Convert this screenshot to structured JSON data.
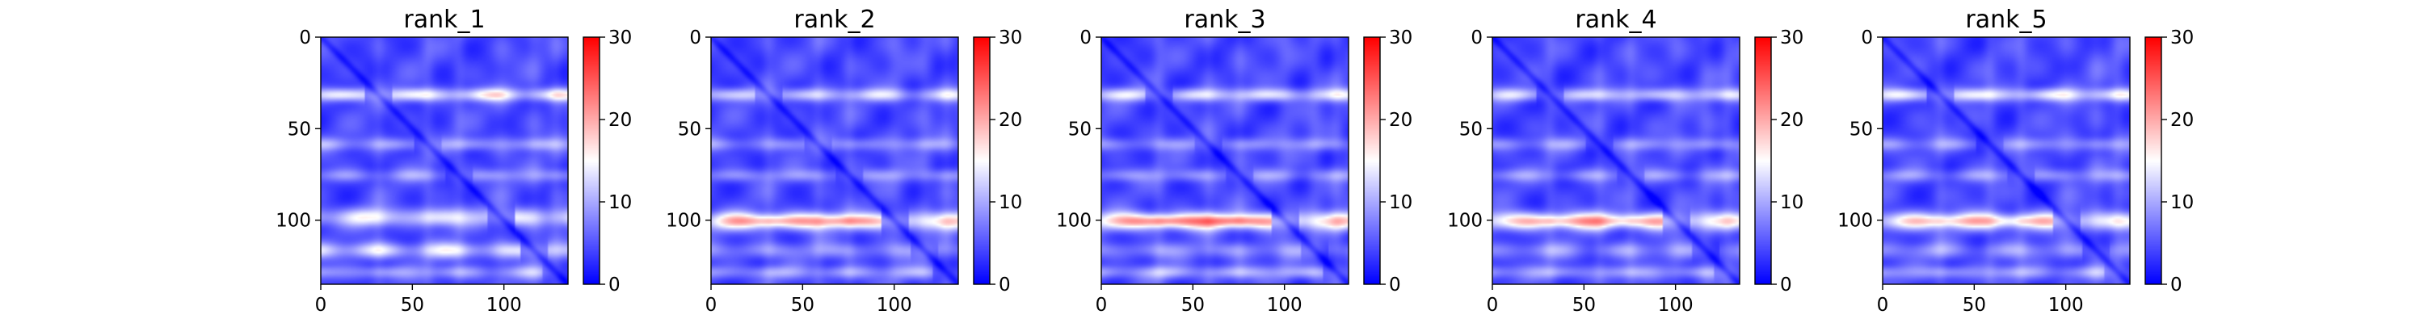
{
  "chart_data": [
    {
      "type": "heatmap",
      "title": "rank_1",
      "xlabel": "",
      "ylabel": "",
      "xlim": [
        0,
        135
      ],
      "ylim": [
        135,
        0
      ],
      "x_ticks": [
        0,
        50,
        100
      ],
      "y_ticks": [
        0,
        50,
        100
      ],
      "colorbar": {
        "min": 0,
        "max": 30,
        "ticks": [
          0,
          10,
          20,
          30
        ],
        "colors": [
          "#0000ff",
          "#ffffff",
          "#ff0000"
        ]
      },
      "row_bands": [
        {
          "center": 31,
          "width": 2.5,
          "value": 16
        },
        {
          "center": 58,
          "width": 2.5,
          "value": 10
        },
        {
          "center": 75,
          "width": 2.5,
          "value": 9
        },
        {
          "center": 98,
          "width": 3.5,
          "value": 15
        },
        {
          "center": 116,
          "width": 3,
          "value": 14
        },
        {
          "center": 128,
          "width": 2.5,
          "value": 10
        }
      ],
      "hot_spots": []
    },
    {
      "type": "heatmap",
      "title": "rank_2",
      "xlabel": "",
      "ylabel": "",
      "xlim": [
        0,
        135
      ],
      "ylim": [
        135,
        0
      ],
      "x_ticks": [
        0,
        50,
        100
      ],
      "y_ticks": [
        0,
        50,
        100
      ],
      "colorbar": {
        "min": 0,
        "max": 30,
        "ticks": [
          0,
          10,
          20,
          30
        ],
        "colors": [
          "#0000ff",
          "#ffffff",
          "#ff0000"
        ]
      },
      "row_bands": [
        {
          "center": 31,
          "width": 2.5,
          "value": 13
        },
        {
          "center": 58,
          "width": 2.5,
          "value": 9
        },
        {
          "center": 75,
          "width": 2.5,
          "value": 9
        },
        {
          "center": 100,
          "width": 3.5,
          "value": 18
        },
        {
          "center": 116,
          "width": 3,
          "value": 9
        },
        {
          "center": 128,
          "width": 2.5,
          "value": 10
        }
      ],
      "hot_spots": [
        {
          "x": 33,
          "y": 100,
          "value": 22
        },
        {
          "x": 72,
          "y": 100,
          "value": 22
        }
      ]
    },
    {
      "type": "heatmap",
      "title": "rank_3",
      "xlabel": "",
      "ylabel": "",
      "xlim": [
        0,
        135
      ],
      "ylim": [
        135,
        0
      ],
      "x_ticks": [
        0,
        50,
        100
      ],
      "y_ticks": [
        0,
        50,
        100
      ],
      "colorbar": {
        "min": 0,
        "max": 30,
        "ticks": [
          0,
          10,
          20,
          30
        ],
        "colors": [
          "#0000ff",
          "#ffffff",
          "#ff0000"
        ]
      },
      "row_bands": [
        {
          "center": 31,
          "width": 2.5,
          "value": 14
        },
        {
          "center": 58,
          "width": 2.5,
          "value": 9
        },
        {
          "center": 75,
          "width": 2.5,
          "value": 9
        },
        {
          "center": 100,
          "width": 3.5,
          "value": 19
        },
        {
          "center": 116,
          "width": 3,
          "value": 9
        },
        {
          "center": 128,
          "width": 2.5,
          "value": 11
        }
      ],
      "hot_spots": [
        {
          "x": 33,
          "y": 100,
          "value": 24
        },
        {
          "x": 72,
          "y": 100,
          "value": 24
        }
      ]
    },
    {
      "type": "heatmap",
      "title": "rank_4",
      "xlabel": "",
      "ylabel": "",
      "xlim": [
        0,
        135
      ],
      "ylim": [
        135,
        0
      ],
      "x_ticks": [
        0,
        50,
        100
      ],
      "y_ticks": [
        0,
        50,
        100
      ],
      "colorbar": {
        "min": 0,
        "max": 30,
        "ticks": [
          0,
          10,
          20,
          30
        ],
        "colors": [
          "#0000ff",
          "#ffffff",
          "#ff0000"
        ]
      },
      "row_bands": [
        {
          "center": 31,
          "width": 2.5,
          "value": 13
        },
        {
          "center": 58,
          "width": 2.5,
          "value": 9
        },
        {
          "center": 75,
          "width": 2.5,
          "value": 9
        },
        {
          "center": 100,
          "width": 3.5,
          "value": 18
        },
        {
          "center": 116,
          "width": 3,
          "value": 9
        },
        {
          "center": 128,
          "width": 2.5,
          "value": 10
        }
      ],
      "hot_spots": [
        {
          "x": 33,
          "y": 100,
          "value": 21
        },
        {
          "x": 72,
          "y": 100,
          "value": 21
        }
      ]
    },
    {
      "type": "heatmap",
      "title": "rank_5",
      "xlabel": "",
      "ylabel": "",
      "xlim": [
        0,
        135
      ],
      "ylim": [
        135,
        0
      ],
      "x_ticks": [
        0,
        50,
        100
      ],
      "y_ticks": [
        0,
        50,
        100
      ],
      "colorbar": {
        "min": 0,
        "max": 30,
        "ticks": [
          0,
          10,
          20,
          30
        ],
        "colors": [
          "#0000ff",
          "#ffffff",
          "#ff0000"
        ]
      },
      "row_bands": [
        {
          "center": 31,
          "width": 2.5,
          "value": 15
        },
        {
          "center": 58,
          "width": 2.5,
          "value": 9
        },
        {
          "center": 75,
          "width": 2.5,
          "value": 9
        },
        {
          "center": 100,
          "width": 3.5,
          "value": 17
        },
        {
          "center": 116,
          "width": 3,
          "value": 9
        },
        {
          "center": 128,
          "width": 2.5,
          "value": 10
        }
      ],
      "hot_spots": [
        {
          "x": 33,
          "y": 100,
          "value": 20
        },
        {
          "x": 72,
          "y": 100,
          "value": 20
        }
      ]
    }
  ]
}
